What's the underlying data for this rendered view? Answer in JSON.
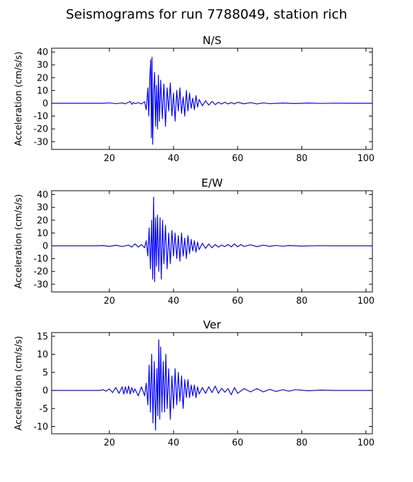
{
  "figure": {
    "title": "Seismograms for run 7788049, station rich"
  },
  "chart_data": [
    {
      "type": "line",
      "title": "N/S",
      "xlabel": "",
      "ylabel": "Acceleration (cm/s/s)",
      "xlim": [
        2,
        102
      ],
      "ylim": [
        -36,
        43
      ],
      "xticks": [
        20,
        40,
        60,
        80,
        100
      ],
      "yticks": [
        -30,
        -20,
        -10,
        0,
        10,
        20,
        30,
        40
      ],
      "series": [
        {
          "color": "#0000ff",
          "x": [
            2,
            18,
            20,
            22,
            24,
            25,
            26,
            26.5,
            27,
            27.5,
            28,
            29,
            30,
            31,
            31.5,
            32,
            32.3,
            32.6,
            32.9,
            33.1,
            33.3,
            33.5,
            33.8,
            34.1,
            34.4,
            34.7,
            35,
            35.3,
            35.6,
            36,
            36.5,
            37,
            37.5,
            38,
            38.5,
            39,
            39.5,
            40,
            40.5,
            41,
            41.5,
            42,
            42.5,
            43,
            43.5,
            44,
            44.5,
            45,
            45.5,
            46,
            46.5,
            47,
            47.5,
            48,
            49,
            50,
            51,
            52,
            53,
            54,
            55,
            56,
            57,
            58,
            59,
            60,
            62,
            64,
            66,
            68,
            70,
            74,
            78,
            82,
            86,
            90,
            95,
            102
          ],
          "y": [
            0,
            0,
            0.3,
            -0.3,
            0.3,
            -0.4,
            0.8,
            1.5,
            -0.8,
            0.6,
            -0.3,
            0.5,
            -0.5,
            1.2,
            -5,
            12,
            -10,
            20,
            34,
            -27,
            36,
            -32,
            8,
            24,
            -18,
            14,
            -20,
            22,
            -14,
            18,
            -12,
            15,
            -18,
            12,
            -6,
            16,
            -10,
            8,
            -14,
            10,
            -6,
            12,
            -8,
            5,
            -10,
            10,
            -6,
            8,
            -4,
            4,
            -5,
            6,
            -3,
            3,
            -2,
            2,
            -1.5,
            1.5,
            -1,
            0.8,
            -0.6,
            0.8,
            -0.5,
            0.6,
            -0.5,
            0.8,
            -0.4,
            0.5,
            -0.5,
            0.3,
            -0.3,
            0.2,
            -0.2,
            0.2,
            -0.1,
            0.1,
            0,
            0
          ]
        }
      ]
    },
    {
      "type": "line",
      "title": "E/W",
      "xlabel": "",
      "ylabel": "Acceleration (cm/s/s)",
      "xlim": [
        2,
        102
      ],
      "ylim": [
        -36,
        43
      ],
      "xticks": [
        20,
        40,
        60,
        80,
        100
      ],
      "yticks": [
        -30,
        -20,
        -10,
        0,
        10,
        20,
        30,
        40
      ],
      "series": [
        {
          "color": "#0000ff",
          "x": [
            2,
            16,
            18,
            20,
            22,
            24,
            26,
            27,
            28,
            29,
            30,
            31,
            31.5,
            32,
            32.4,
            32.8,
            33.2,
            33.5,
            33.8,
            34.1,
            34.4,
            34.7,
            35,
            35.4,
            35.8,
            36.2,
            36.6,
            37,
            37.5,
            38,
            38.5,
            39,
            39.5,
            40,
            40.5,
            41,
            41.5,
            42,
            42.5,
            43,
            43.5,
            44,
            44.5,
            45,
            45.5,
            46,
            46.5,
            47,
            47.5,
            48,
            49,
            50,
            51,
            52,
            53,
            54,
            55,
            56,
            57,
            58,
            59,
            60,
            61,
            62,
            64,
            66,
            68,
            70,
            72,
            74,
            76,
            80,
            85,
            90,
            95,
            102
          ],
          "y": [
            0,
            0,
            0.2,
            -0.4,
            0.4,
            -0.5,
            0.6,
            -1,
            1.5,
            -1,
            1,
            -1.5,
            4,
            -8,
            14,
            -18,
            20,
            -26,
            38,
            -28,
            22,
            -16,
            24,
            -20,
            22,
            -26,
            20,
            -14,
            16,
            -18,
            10,
            -14,
            12,
            -8,
            10,
            -10,
            8,
            -12,
            10,
            -8,
            6,
            -10,
            8,
            -6,
            5,
            -4,
            4,
            -5,
            3,
            -3,
            2,
            -2,
            1.5,
            -1.5,
            1,
            -1,
            0.6,
            -0.6,
            1,
            -0.8,
            1.5,
            -0.8,
            1,
            -0.5,
            0.8,
            -0.6,
            0.5,
            -0.4,
            0.3,
            -0.3,
            0.2,
            -0.2,
            0.1,
            0,
            0,
            0
          ]
        }
      ]
    },
    {
      "type": "line",
      "title": "Ver",
      "xlabel": "",
      "ylabel": "Acceleration (cm/s/s)",
      "xlim": [
        2,
        102
      ],
      "ylim": [
        -12,
        16
      ],
      "xticks": [
        20,
        40,
        60,
        80,
        100
      ],
      "yticks": [
        -10,
        -5,
        0,
        5,
        10,
        15
      ],
      "series": [
        {
          "color": "#0000ff",
          "x": [
            2,
            17,
            18,
            19,
            20,
            21,
            22,
            23,
            24,
            24.5,
            25,
            25.5,
            26,
            26.5,
            27,
            27.5,
            28,
            29,
            30,
            31,
            31.5,
            32,
            32.4,
            32.8,
            33.2,
            33.6,
            34,
            34.4,
            34.8,
            35.1,
            35.4,
            35.7,
            36,
            36.4,
            36.8,
            37.2,
            37.6,
            38,
            38.5,
            39,
            39.5,
            40,
            40.5,
            41,
            41.5,
            42,
            42.5,
            43,
            43.5,
            44,
            44.5,
            45,
            45.5,
            46,
            46.5,
            47,
            47.5,
            48,
            49,
            50,
            51,
            52,
            53,
            54,
            55,
            56,
            57,
            58,
            59,
            60,
            62,
            64,
            66,
            68,
            70,
            72,
            74,
            76,
            78,
            82,
            86,
            90,
            95,
            102
          ],
          "y": [
            0,
            0,
            0.2,
            -0.2,
            0.4,
            -0.6,
            0.8,
            -0.8,
            1,
            -1,
            1,
            -0.8,
            1.2,
            -1,
            0.8,
            -0.6,
            0.4,
            -1.5,
            1,
            -1.5,
            2,
            -4,
            7,
            -6,
            10,
            -9,
            8,
            -11,
            6,
            -7,
            14,
            -8,
            12,
            -6,
            8,
            -6,
            10,
            -5,
            6,
            -8,
            4,
            -5,
            6,
            -4,
            5,
            -3,
            4,
            -5,
            3,
            -2,
            3,
            -2,
            1.5,
            -1.5,
            1.5,
            -2,
            1,
            -1,
            0.8,
            -0.8,
            1,
            -0.6,
            1.2,
            -0.8,
            0.6,
            -0.5,
            0.5,
            -1.2,
            0.8,
            -0.8,
            0.5,
            -0.4,
            0.5,
            -0.4,
            0.3,
            -0.3,
            0.2,
            -0.2,
            0.2,
            -0.1,
            0.1,
            0,
            0,
            0
          ]
        }
      ]
    }
  ]
}
